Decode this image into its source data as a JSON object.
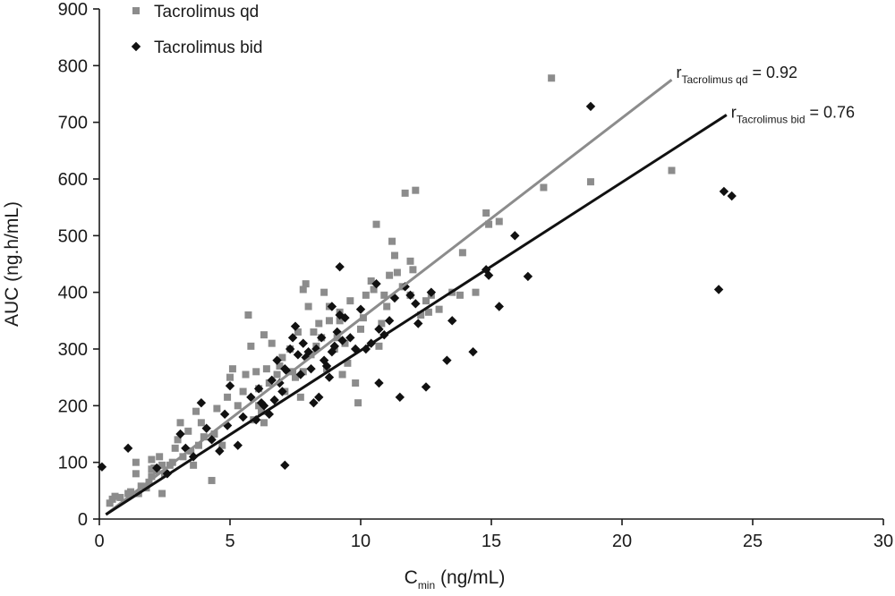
{
  "chart_data": {
    "type": "scatter",
    "xlabel_main": "C",
    "xlabel_sub": "min",
    "xlabel_units": " (ng/mL)",
    "ylabel": "AUC (ng.h/mL)",
    "xlim": [
      0,
      30
    ],
    "ylim": [
      0,
      900
    ],
    "xticks": [
      0,
      5,
      10,
      15,
      20,
      25,
      30
    ],
    "yticks": [
      0,
      100,
      200,
      300,
      400,
      500,
      600,
      700,
      800,
      900
    ],
    "grid": false,
    "legend_position": "top-left",
    "series": [
      {
        "name": "Tacrolimus qd",
        "marker": "square",
        "color": "#8c8c8c",
        "points": [
          [
            0.4,
            28
          ],
          [
            0.5,
            35
          ],
          [
            0.6,
            40
          ],
          [
            0.8,
            38
          ],
          [
            1.1,
            45
          ],
          [
            1.4,
            80
          ],
          [
            1.4,
            100
          ],
          [
            1.5,
            45
          ],
          [
            1.6,
            58
          ],
          [
            1.8,
            55
          ],
          [
            1.9,
            65
          ],
          [
            2.0,
            75
          ],
          [
            2.0,
            105
          ],
          [
            2.1,
            90
          ],
          [
            2.2,
            85
          ],
          [
            2.3,
            110
          ],
          [
            2.4,
            95
          ],
          [
            2.4,
            45
          ],
          [
            2.5,
            80
          ],
          [
            2.7,
            95
          ],
          [
            2.8,
            100
          ],
          [
            2.9,
            125
          ],
          [
            3.0,
            140
          ],
          [
            3.1,
            170
          ],
          [
            3.2,
            110
          ],
          [
            3.4,
            155
          ],
          [
            3.5,
            120
          ],
          [
            3.6,
            95
          ],
          [
            3.7,
            190
          ],
          [
            3.9,
            170
          ],
          [
            4.0,
            145
          ],
          [
            4.3,
            68
          ],
          [
            4.4,
            150
          ],
          [
            4.5,
            195
          ],
          [
            4.7,
            130
          ],
          [
            4.9,
            215
          ],
          [
            5.0,
            250
          ],
          [
            5.1,
            265
          ],
          [
            5.3,
            200
          ],
          [
            5.5,
            225
          ],
          [
            5.6,
            255
          ],
          [
            5.8,
            305
          ],
          [
            5.9,
            175
          ],
          [
            6.0,
            260
          ],
          [
            6.1,
            200
          ],
          [
            6.2,
            190
          ],
          [
            6.3,
            170
          ],
          [
            6.4,
            265
          ],
          [
            6.5,
            240
          ],
          [
            6.6,
            310
          ],
          [
            6.8,
            255
          ],
          [
            6.9,
            270
          ],
          [
            7.0,
            285
          ],
          [
            7.1,
            225
          ],
          [
            7.3,
            300
          ],
          [
            7.4,
            260
          ],
          [
            7.5,
            250
          ],
          [
            7.6,
            330
          ],
          [
            7.7,
            215
          ],
          [
            7.8,
            260
          ],
          [
            7.9,
            415
          ],
          [
            8.0,
            375
          ],
          [
            8.1,
            290
          ],
          [
            8.2,
            330
          ],
          [
            8.3,
            305
          ],
          [
            8.4,
            345
          ],
          [
            8.5,
            320
          ],
          [
            8.6,
            400
          ],
          [
            8.7,
            265
          ],
          [
            8.8,
            350
          ],
          [
            9.0,
            300
          ],
          [
            9.1,
            320
          ],
          [
            9.2,
            365
          ],
          [
            9.3,
            255
          ],
          [
            9.4,
            310
          ],
          [
            9.5,
            275
          ],
          [
            9.6,
            385
          ],
          [
            9.8,
            240
          ],
          [
            9.9,
            205
          ],
          [
            10.0,
            335
          ],
          [
            10.1,
            355
          ],
          [
            10.2,
            395
          ],
          [
            10.4,
            420
          ],
          [
            10.5,
            405
          ],
          [
            10.6,
            520
          ],
          [
            10.7,
            305
          ],
          [
            10.8,
            345
          ],
          [
            11.0,
            375
          ],
          [
            11.1,
            430
          ],
          [
            11.2,
            490
          ],
          [
            11.3,
            465
          ],
          [
            11.4,
            435
          ],
          [
            11.6,
            410
          ],
          [
            11.7,
            575
          ],
          [
            11.9,
            395
          ],
          [
            12.0,
            440
          ],
          [
            12.1,
            580
          ],
          [
            12.3,
            360
          ],
          [
            12.5,
            385
          ],
          [
            12.7,
            395
          ],
          [
            13.0,
            370
          ],
          [
            13.5,
            400
          ],
          [
            13.9,
            470
          ],
          [
            14.4,
            400
          ],
          [
            14.8,
            540
          ],
          [
            14.9,
            520
          ],
          [
            15.3,
            525
          ],
          [
            17.0,
            585
          ],
          [
            17.3,
            778
          ],
          [
            18.8,
            595
          ],
          [
            21.9,
            615
          ],
          [
            6.3,
            325
          ],
          [
            5.7,
            360
          ],
          [
            7.8,
            405
          ],
          [
            9.2,
            350
          ],
          [
            8.8,
            375
          ],
          [
            10.9,
            395
          ],
          [
            12.6,
            365
          ],
          [
            13.8,
            395
          ],
          [
            11.9,
            455
          ],
          [
            6.1,
            230
          ],
          [
            3.8,
            130
          ],
          [
            2.0,
            88
          ],
          [
            1.2,
            48
          ]
        ]
      },
      {
        "name": "Tacrolimus bid",
        "marker": "diamond",
        "color": "#111111",
        "points": [
          [
            0.1,
            92
          ],
          [
            1.1,
            125
          ],
          [
            2.2,
            90
          ],
          [
            2.6,
            80
          ],
          [
            3.1,
            150
          ],
          [
            3.3,
            125
          ],
          [
            3.6,
            110
          ],
          [
            3.9,
            205
          ],
          [
            4.1,
            160
          ],
          [
            4.3,
            140
          ],
          [
            4.6,
            120
          ],
          [
            4.9,
            165
          ],
          [
            5.0,
            235
          ],
          [
            5.3,
            130
          ],
          [
            5.5,
            180
          ],
          [
            5.8,
            215
          ],
          [
            6.0,
            175
          ],
          [
            6.1,
            230
          ],
          [
            6.3,
            200
          ],
          [
            6.5,
            185
          ],
          [
            6.6,
            245
          ],
          [
            6.7,
            210
          ],
          [
            6.8,
            280
          ],
          [
            6.9,
            240
          ],
          [
            7.0,
            225
          ],
          [
            7.1,
            265
          ],
          [
            7.2,
            260
          ],
          [
            7.3,
            300
          ],
          [
            7.5,
            340
          ],
          [
            7.6,
            290
          ],
          [
            7.7,
            255
          ],
          [
            7.8,
            310
          ],
          [
            7.9,
            285
          ],
          [
            8.0,
            295
          ],
          [
            8.1,
            265
          ],
          [
            8.2,
            205
          ],
          [
            8.3,
            300
          ],
          [
            8.4,
            215
          ],
          [
            8.5,
            320
          ],
          [
            8.6,
            280
          ],
          [
            8.7,
            270
          ],
          [
            8.8,
            250
          ],
          [
            8.9,
            295
          ],
          [
            9.0,
            305
          ],
          [
            9.1,
            330
          ],
          [
            9.2,
            360
          ],
          [
            9.3,
            315
          ],
          [
            9.4,
            355
          ],
          [
            9.6,
            320
          ],
          [
            9.8,
            300
          ],
          [
            10.0,
            370
          ],
          [
            10.2,
            300
          ],
          [
            10.4,
            310
          ],
          [
            10.6,
            415
          ],
          [
            10.7,
            240
          ],
          [
            10.9,
            325
          ],
          [
            11.1,
            350
          ],
          [
            11.3,
            390
          ],
          [
            11.5,
            215
          ],
          [
            11.7,
            410
          ],
          [
            12.2,
            345
          ],
          [
            12.5,
            233
          ],
          [
            12.7,
            400
          ],
          [
            13.3,
            280
          ],
          [
            13.5,
            350
          ],
          [
            14.3,
            295
          ],
          [
            14.8,
            440
          ],
          [
            14.9,
            430
          ],
          [
            15.3,
            375
          ],
          [
            15.9,
            500
          ],
          [
            16.4,
            428
          ],
          [
            18.8,
            728
          ],
          [
            23.7,
            405
          ],
          [
            23.9,
            578
          ],
          [
            24.2,
            570
          ],
          [
            7.1,
            95
          ],
          [
            9.2,
            445
          ],
          [
            11.9,
            395
          ],
          [
            10.7,
            335
          ],
          [
            12.1,
            380
          ],
          [
            8.9,
            375
          ],
          [
            7.4,
            320
          ],
          [
            6.2,
            205
          ],
          [
            4.8,
            185
          ]
        ]
      }
    ],
    "fits": [
      {
        "series": "Tacrolimus qd",
        "x1": 0.25,
        "y1": 8,
        "x2": 21.9,
        "y2": 775,
        "color": "#8c8c8c",
        "label_prefix": "r",
        "label_sub": "Tacrolimus qd",
        "label_value": " = 0.92"
      },
      {
        "series": "Tacrolimus bid",
        "x1": 0.25,
        "y1": 8,
        "x2": 24.0,
        "y2": 713,
        "color": "#111111",
        "label_prefix": "r",
        "label_sub": "Tacrolimus bid",
        "label_value": " = 0.76"
      }
    ]
  }
}
